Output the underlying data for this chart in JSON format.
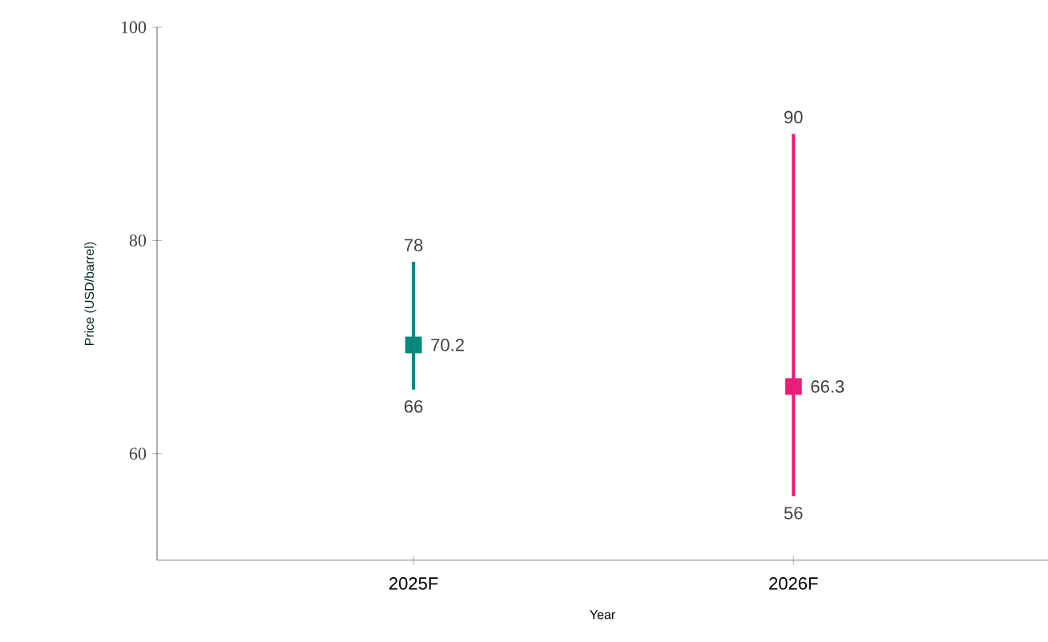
{
  "chart_data": {
    "type": "scatter",
    "xlabel": "Year",
    "ylabel": "Price (USD/barrel)",
    "categories": [
      "2025F",
      "2026F"
    ],
    "values": [
      70.2,
      66.3
    ],
    "value_labels": [
      "70.2",
      "66.3"
    ],
    "errors": [
      [
        66,
        78
      ],
      [
        56,
        90
      ]
    ],
    "colors": [
      "#00897b",
      "#e91e78"
    ],
    "marker": "square",
    "ylim": [
      50,
      100
    ],
    "yticks": [
      60,
      80,
      100
    ],
    "grid": false,
    "annotations": [
      "78",
      "66",
      "90",
      "56"
    ]
  }
}
